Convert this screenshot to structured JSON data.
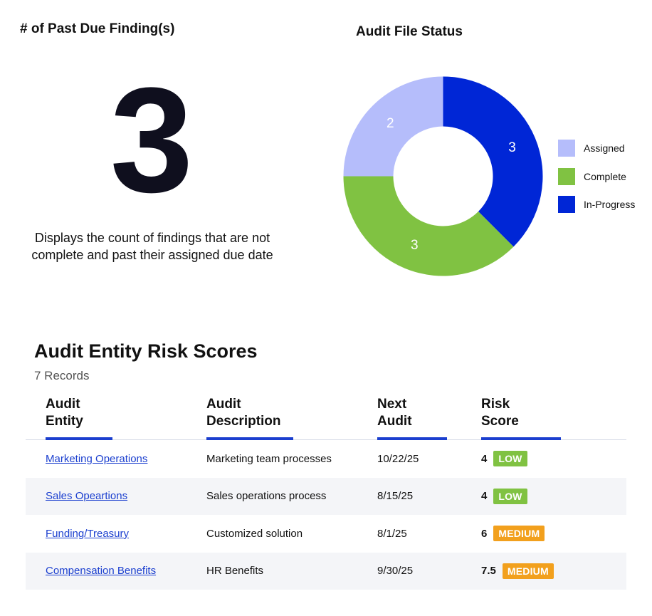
{
  "kpi": {
    "title": "# of Past Due Finding(s)",
    "value": "3",
    "description": "Displays the count of findings that are not complete and past their assigned due date"
  },
  "chart_data": {
    "type": "pie",
    "title": "Audit File Status",
    "style": "donut",
    "legend_position": "right",
    "slices": [
      {
        "label": "In-Progress",
        "value": 3,
        "color": "#0026d6"
      },
      {
        "label": "Complete",
        "value": 3,
        "color": "#80c242"
      },
      {
        "label": "Assigned",
        "value": 2,
        "color": "#b5bdfb"
      }
    ],
    "legend": [
      {
        "label": "Assigned",
        "color": "#b5bdfb"
      },
      {
        "label": "Complete",
        "color": "#80c242"
      },
      {
        "label": "In-Progress",
        "color": "#0026d6"
      }
    ]
  },
  "risk_table": {
    "title": "Audit Entity Risk Scores",
    "record_count": "7 Records",
    "columns": [
      {
        "line1": "Audit",
        "line2": "Entity"
      },
      {
        "line1": "Audit",
        "line2": "Description"
      },
      {
        "line1": "Next",
        "line2": "Audit"
      },
      {
        "line1": "Risk",
        "line2": "Score"
      }
    ],
    "rows": [
      {
        "entity": "Marketing Operations",
        "description": "Marketing team processes",
        "next_audit": "10/22/25",
        "score": "4",
        "level": "LOW",
        "level_color": "#80c242"
      },
      {
        "entity": "Sales Opeartions",
        "description": "Sales operations process",
        "next_audit": "8/15/25",
        "score": "4",
        "level": "LOW",
        "level_color": "#80c242"
      },
      {
        "entity": "Funding/Treasury",
        "description": "Customized solution",
        "next_audit": "8/1/25",
        "score": "6",
        "level": "MEDIUM",
        "level_color": "#f2a01d"
      },
      {
        "entity": "Compensation Benefits",
        "description": "HR Benefits",
        "next_audit": "9/30/25",
        "score": "7.5",
        "level": "MEDIUM",
        "level_color": "#f2a01d"
      }
    ]
  }
}
